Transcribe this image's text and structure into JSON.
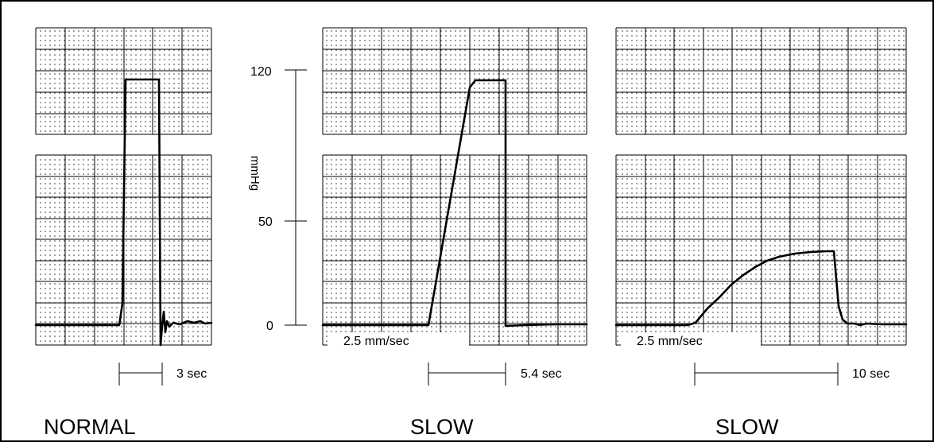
{
  "axis": {
    "unit": "mmHg",
    "ticks": [
      {
        "value": 0,
        "label": "0"
      },
      {
        "value": 50,
        "label": "50"
      },
      {
        "value": 120,
        "label": "120"
      }
    ]
  },
  "panels": [
    {
      "id": "normal",
      "caption": "NORMAL",
      "paper_speed": "",
      "duration_label": "3 sec"
    },
    {
      "id": "slow1",
      "caption": "SLOW",
      "paper_speed": "2.5  mm/sec",
      "duration_label": "5.4  sec"
    },
    {
      "id": "slow2",
      "caption": "SLOW",
      "paper_speed": "2.5  mm/sec",
      "duration_label": "10  sec"
    }
  ],
  "colors": {
    "ink": "#000000",
    "paper": "#ffffff"
  }
}
